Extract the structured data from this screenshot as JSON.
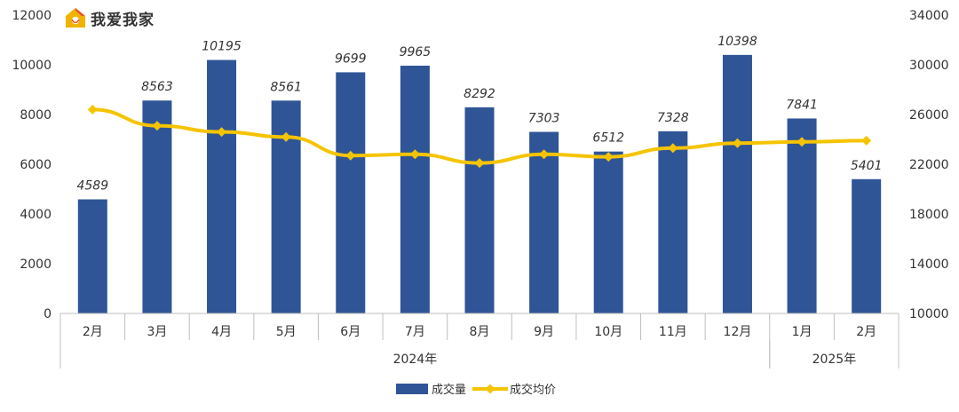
{
  "brand": {
    "name": "我爱我家",
    "logo_icon": "house-logo-icon",
    "logo_color": "#f0b400"
  },
  "chart_data": {
    "type": "bar+line",
    "categories": [
      "2月",
      "3月",
      "4月",
      "5月",
      "6月",
      "7月",
      "8月",
      "9月",
      "10月",
      "11月",
      "12月",
      "1月",
      "2月"
    ],
    "groups": [
      {
        "label": "2024年",
        "count": 11
      },
      {
        "label": "2025年",
        "count": 2
      }
    ],
    "series": [
      {
        "name": "成交量",
        "type": "bar",
        "axis": "left",
        "color": "#2f5597",
        "values": [
          4589,
          8563,
          10195,
          8561,
          9699,
          9965,
          8292,
          7303,
          6512,
          7328,
          10398,
          7841,
          5401
        ],
        "labels": [
          "4589",
          "8563",
          "10195",
          "8561",
          "9699",
          "9965",
          "8292",
          "7303",
          "6512",
          "7328",
          "10398",
          "7841",
          "5401"
        ]
      },
      {
        "name": "成交均价",
        "type": "line",
        "axis": "right",
        "color": "#f5c400",
        "values": [
          26400,
          25100,
          24600,
          24200,
          22700,
          22800,
          22100,
          22800,
          22600,
          23300,
          23700,
          23800,
          23900
        ]
      }
    ],
    "y_left": {
      "min": 0,
      "max": 12000,
      "ticks": [
        "0",
        "2000",
        "4000",
        "6000",
        "8000",
        "10000",
        "12000"
      ]
    },
    "y_right": {
      "min": 10000,
      "max": 34000,
      "ticks": [
        "10000",
        "14000",
        "18000",
        "22000",
        "26000",
        "30000",
        "34000"
      ]
    },
    "legend_position": "bottom-center",
    "grid": false
  }
}
